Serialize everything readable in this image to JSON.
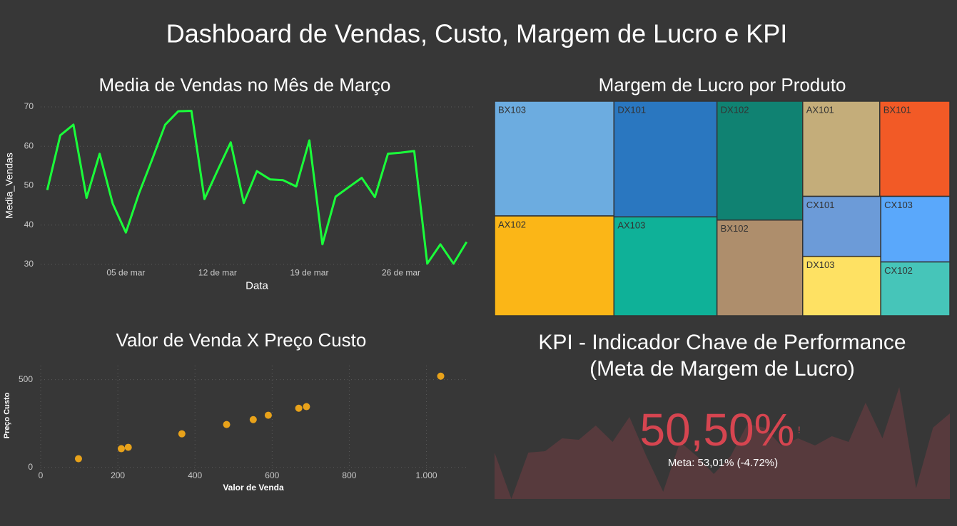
{
  "title": "Dashboard de Vendas, Custo, Margem de Lucro e KPI",
  "chart_data": [
    {
      "type": "line",
      "title": "Media de Vendas no Mês de Março",
      "x_label": "Data",
      "y_label": "Media_Vendas",
      "categories": [
        null,
        null,
        null,
        null,
        null,
        null,
        "05 de mar",
        null,
        null,
        null,
        null,
        null,
        null,
        "12 de mar",
        null,
        null,
        null,
        null,
        null,
        null,
        "19 de mar",
        null,
        null,
        null,
        null,
        null,
        null,
        "26 de mar",
        null,
        null,
        null,
        null,
        null
      ],
      "values": [
        48.9,
        62.8,
        65.5,
        46.9,
        58.1,
        45.4,
        38.1,
        48,
        56.6,
        65.5,
        68.9,
        69,
        46.6,
        53.9,
        61,
        45.6,
        53.7,
        51.6,
        51.4,
        49.8,
        61.5,
        35.1,
        47.2,
        49.6,
        52,
        47.1,
        58.1,
        58.4,
        58.8,
        30.2,
        35.1,
        30.2,
        35.7
      ],
      "color": "#1aff3a",
      "ylim": [
        29,
        71
      ],
      "yticks": [
        30,
        40,
        50,
        60,
        70
      ],
      "grid": true
    },
    {
      "type": "treemap",
      "title": "Margem de Lucro por Produto",
      "categories": [
        "BX103",
        "AX102",
        "DX101",
        "AX103",
        "DX102",
        "BX102",
        "AX101",
        "BX101",
        "CX101",
        "DX103",
        "CX103",
        "CX102"
      ],
      "values": [
        26.9,
        23.4,
        23.4,
        20,
        20,
        16.1,
        14.4,
        13.1,
        9.2,
        9.1,
        8.9,
        7.3
      ],
      "colors": [
        "#6cace0",
        "#fbb617",
        "#2a77c0",
        "#0fb198",
        "#108272",
        "#ae8e6c",
        "#c4ad7a",
        "#f25a26",
        "#6c9bd8",
        "#fee163",
        "#5aa8fb",
        "#46c5b9"
      ]
    },
    {
      "type": "scatter",
      "title": "Valor de Venda X Preço Custo",
      "x_label": "Valor de Venda",
      "y_label": "Preço Custo",
      "x": [
        98,
        209,
        227,
        366,
        482,
        551,
        590,
        669,
        689,
        1037
      ],
      "values": [
        49,
        106,
        114,
        191,
        244,
        272,
        297,
        337,
        346,
        520
      ],
      "color": "#e8a21a",
      "xlim": [
        0,
        1110
      ],
      "ylim": [
        -30,
        580
      ],
      "xticks": [
        0,
        200,
        400,
        600,
        800,
        {
          "value": 1000,
          "label": "1.000"
        }
      ],
      "yticks": [
        0,
        500
      ],
      "grid": true
    },
    {
      "type": "kpi",
      "title": [
        "KPI - Indicador Chave de Performance",
        "(Meta de Margem de Lucro)"
      ],
      "value": 50.5,
      "value_label": "50,50%",
      "status": "!",
      "goal_label": "Meta: 53,01% (-4.72%)",
      "trend": [
        40.6,
        0,
        40.6,
        41.9,
        53.1,
        51.9,
        64.4,
        50,
        71.9,
        37.5,
        6.3,
        50,
        37.5,
        21.9,
        37.5,
        65.6,
        62.5,
        46.9,
        53.1,
        46.9,
        55,
        50,
        84.4,
        53.1,
        98.1,
        9.4,
        62.5,
        75
      ],
      "ylim": [
        0,
        100
      ],
      "color": "#d64550",
      "trend_color": "#573a3d"
    }
  ]
}
